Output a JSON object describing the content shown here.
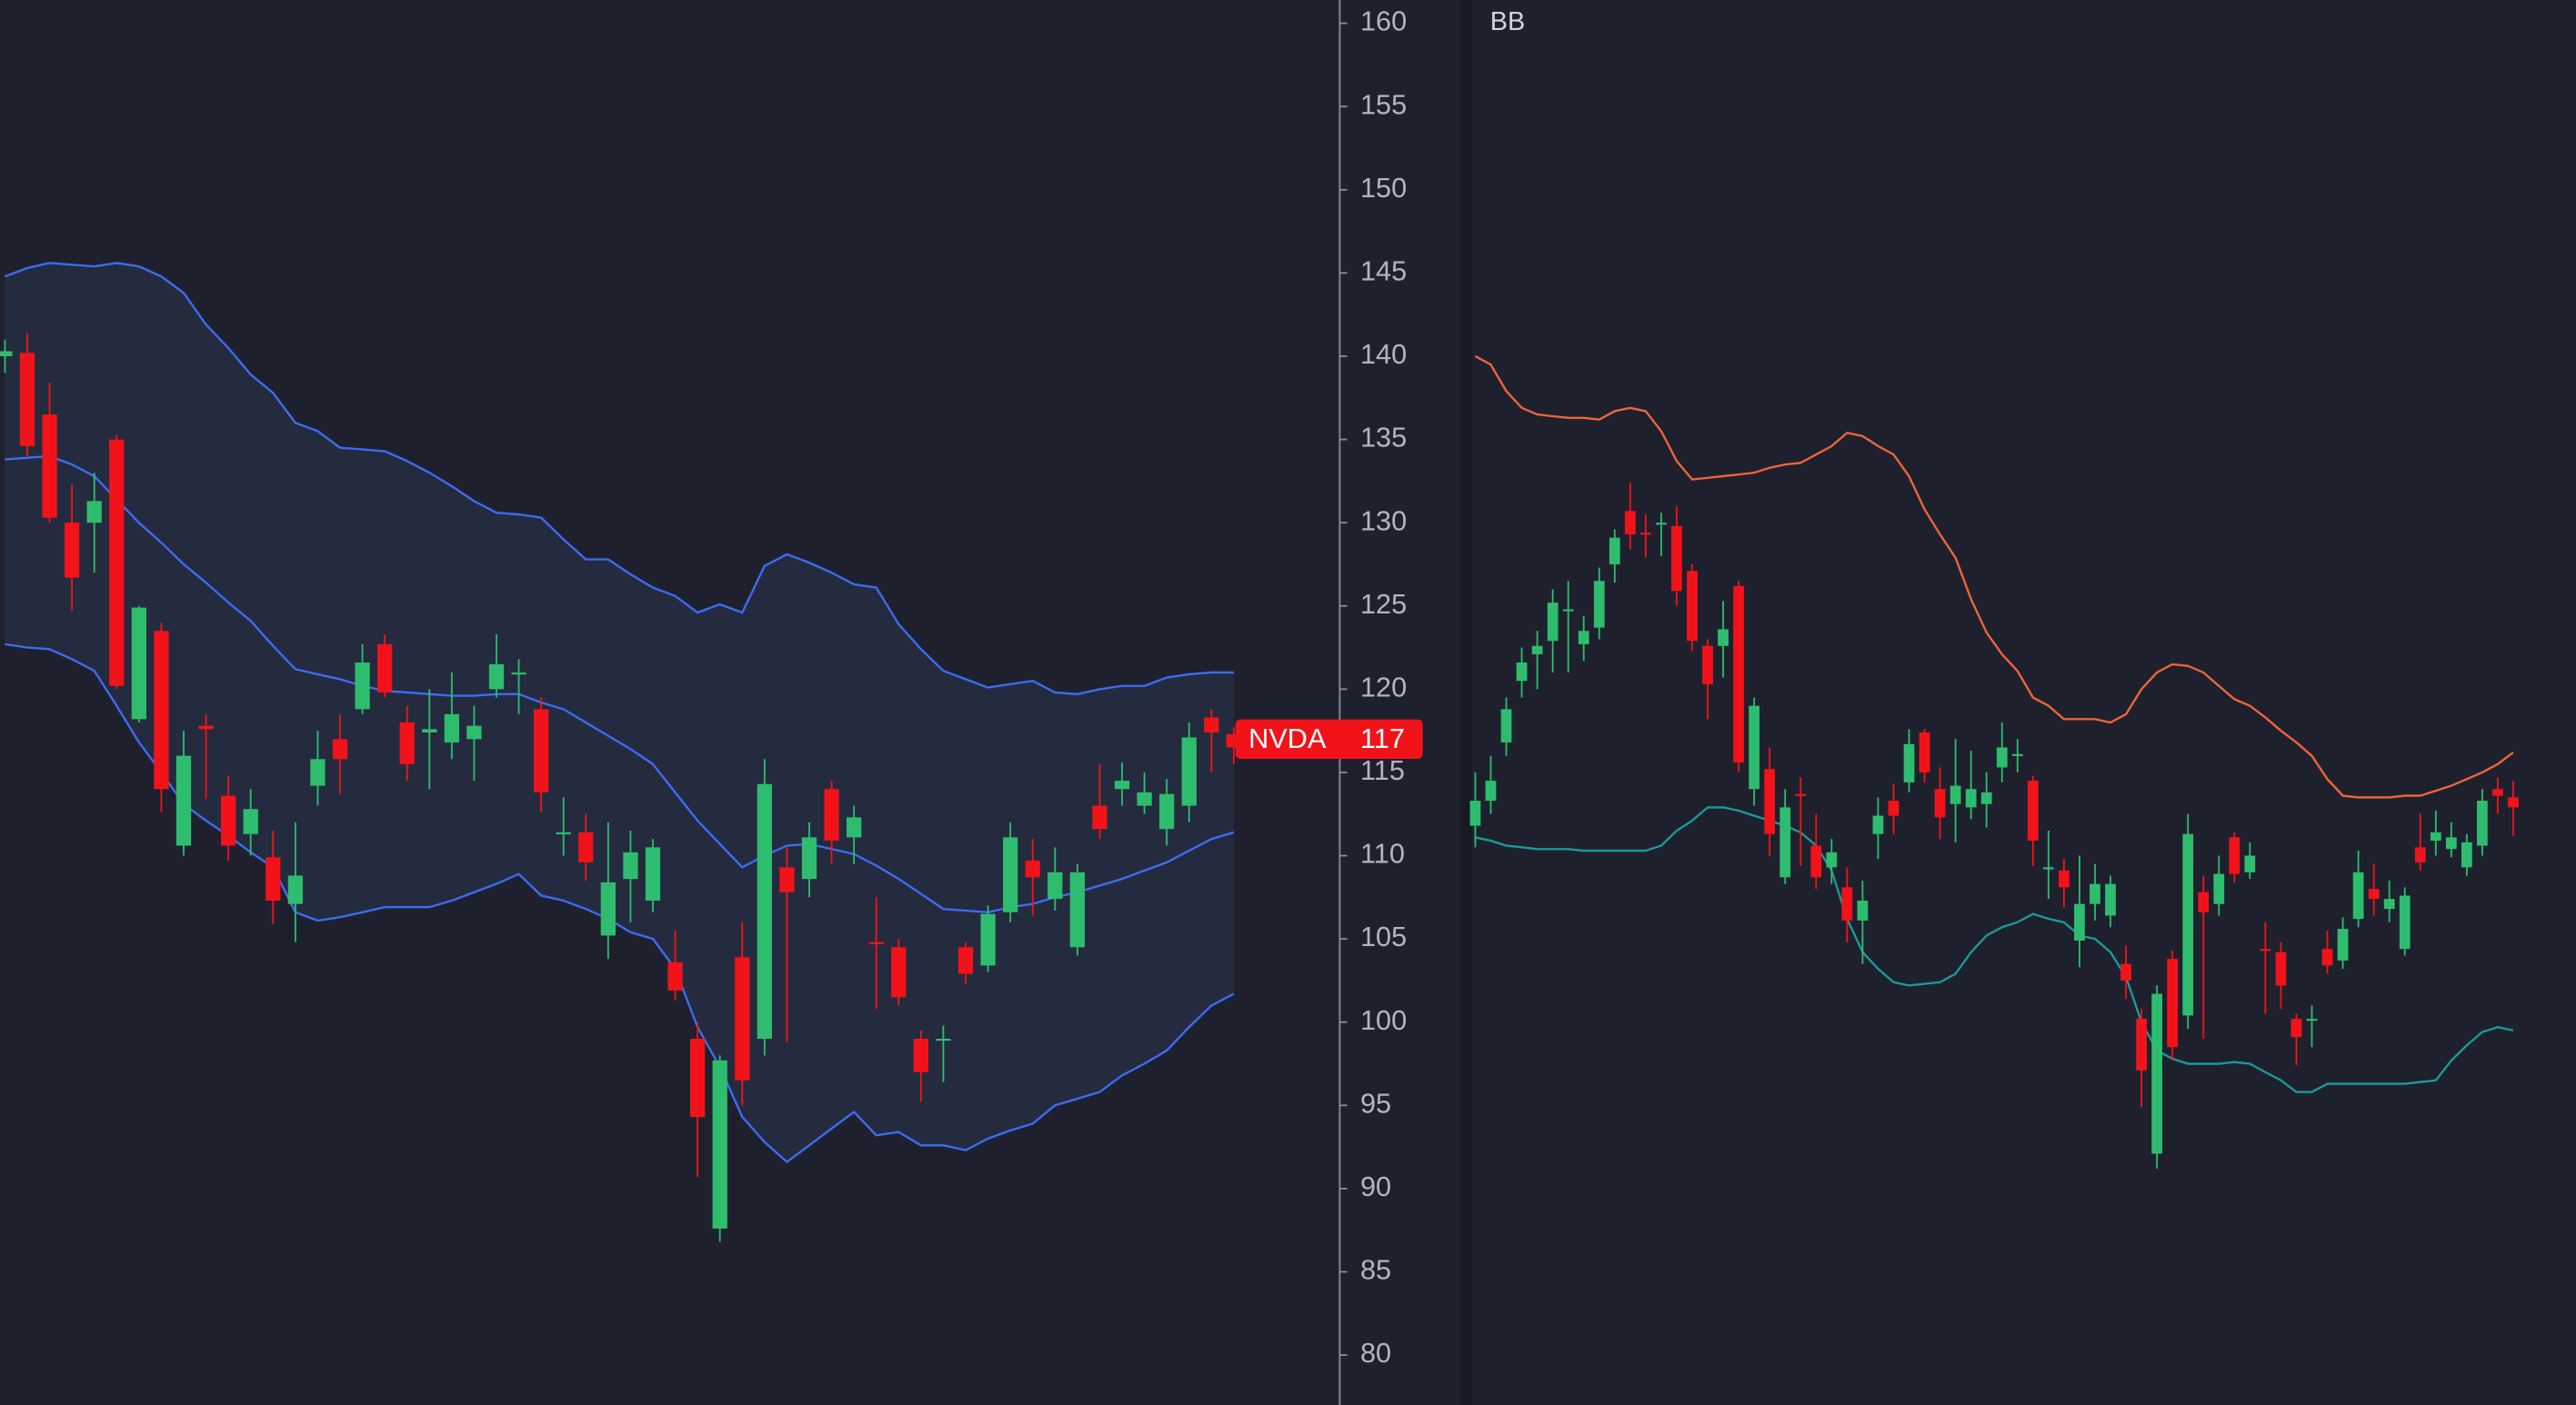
{
  "chart_data": [
    {
      "type": "candlestick",
      "up_color": "#2ebd6e",
      "down_color": "#f2131a",
      "ylim": [
        77,
        161.4
      ],
      "yticks": [
        80,
        85,
        90,
        95,
        100,
        105,
        110,
        115,
        120,
        125,
        130,
        135,
        140,
        145,
        150,
        155,
        160
      ],
      "open": [
        140.0,
        140.2,
        136.5,
        130.0,
        130.0,
        135.0,
        118.2,
        123.5,
        110.6,
        117.8,
        113.6,
        111.3,
        109.9,
        107.1,
        114.2,
        117.0,
        118.8,
        122.7,
        118.0,
        117.4,
        116.8,
        117.0,
        120.0,
        120.9,
        118.8,
        111.3,
        111.4,
        105.2,
        108.6,
        107.3,
        103.6,
        99.0,
        87.6,
        103.9,
        99.0,
        109.3,
        108.6,
        114.0,
        111.1,
        104.8,
        104.5,
        99.0,
        98.9,
        104.5,
        103.4,
        106.6,
        109.7,
        107.4,
        104.5,
        113.0,
        114.0,
        113.0,
        111.6,
        113.0,
        118.3,
        117.3
      ],
      "high": [
        141.0,
        141.4,
        138.4,
        132.3,
        133.0,
        135.3,
        125.0,
        124.0,
        117.5,
        118.5,
        114.8,
        114.0,
        111.5,
        112.0,
        117.5,
        118.5,
        122.7,
        123.3,
        119.0,
        120.0,
        121.0,
        119.0,
        123.3,
        121.8,
        119.5,
        113.5,
        112.5,
        112.0,
        111.5,
        111.0,
        105.5,
        100.0,
        98.0,
        106.0,
        115.8,
        110.5,
        112.0,
        114.5,
        113.0,
        107.5,
        105.0,
        99.5,
        99.8,
        104.8,
        107.0,
        112.0,
        111.0,
        110.5,
        109.5,
        115.5,
        115.6,
        115.0,
        114.6,
        118.0,
        118.8,
        117.7
      ],
      "low": [
        139.0,
        134.0,
        130.0,
        124.7,
        127.0,
        120.0,
        118.0,
        112.6,
        110.0,
        113.4,
        109.7,
        110.0,
        105.9,
        104.8,
        113.0,
        113.7,
        118.5,
        119.5,
        114.5,
        114.0,
        115.8,
        114.5,
        119.5,
        118.5,
        112.6,
        110.0,
        108.5,
        103.8,
        106.0,
        106.6,
        101.3,
        90.7,
        86.8,
        95.0,
        98.0,
        98.8,
        107.5,
        109.5,
        109.5,
        100.8,
        101.0,
        95.2,
        96.4,
        102.3,
        103.0,
        106.0,
        106.4,
        106.7,
        104.0,
        111.0,
        113.0,
        112.5,
        110.6,
        112.0,
        115.0,
        115.5
      ],
      "close": [
        140.3,
        134.6,
        130.3,
        126.7,
        131.3,
        120.2,
        124.9,
        114.0,
        116.0,
        117.6,
        110.6,
        112.8,
        107.3,
        108.8,
        115.8,
        115.8,
        121.6,
        119.8,
        115.5,
        117.6,
        118.5,
        117.8,
        121.5,
        121.0,
        113.8,
        111.4,
        109.6,
        108.4,
        110.2,
        110.5,
        101.9,
        94.3,
        97.7,
        96.5,
        114.3,
        107.8,
        111.1,
        110.9,
        112.3,
        104.7,
        101.5,
        97.0,
        99.0,
        102.9,
        106.5,
        111.1,
        108.7,
        109.0,
        109.0,
        111.6,
        114.5,
        113.8,
        113.7,
        117.1,
        117.4,
        116.5
      ],
      "bands": {
        "color": "#3d6cf5",
        "fill": "#242b3e",
        "upper": [
          144.8,
          145.3,
          145.6,
          145.5,
          145.4,
          145.6,
          145.4,
          144.8,
          143.8,
          141.9,
          140.5,
          138.9,
          137.8,
          136.0,
          135.5,
          134.5,
          134.4,
          134.3,
          133.7,
          133.0,
          132.2,
          131.3,
          130.6,
          130.5,
          130.3,
          129.0,
          127.8,
          127.8,
          126.9,
          126.1,
          125.6,
          124.6,
          125.1,
          124.6,
          127.4,
          128.1,
          127.6,
          127.0,
          126.3,
          126.1,
          123.9,
          122.4,
          121.1,
          120.6,
          120.1,
          120.3,
          120.5,
          119.8,
          119.7,
          120.0,
          120.2,
          120.2,
          120.7,
          120.9,
          121.0,
          121.0
        ],
        "middle": [
          133.8,
          133.9,
          134.0,
          133.5,
          132.8,
          131.4,
          130.0,
          128.8,
          127.5,
          126.4,
          125.2,
          124.1,
          122.6,
          121.2,
          120.9,
          120.6,
          120.2,
          119.9,
          119.8,
          119.7,
          119.6,
          119.6,
          119.7,
          119.7,
          119.2,
          118.8,
          118.0,
          117.2,
          116.4,
          115.5,
          113.8,
          112.1,
          110.7,
          109.3,
          110.0,
          110.6,
          110.7,
          110.4,
          110.1,
          109.4,
          108.6,
          107.7,
          106.8,
          106.7,
          106.6,
          106.9,
          107.1,
          107.5,
          107.8,
          108.2,
          108.6,
          109.1,
          109.6,
          110.3,
          111.0,
          111.4
        ],
        "lower": [
          122.7,
          122.5,
          122.4,
          121.8,
          121.1,
          119.0,
          116.8,
          115.0,
          113.1,
          112.1,
          111.2,
          110.2,
          109.3,
          106.6,
          106.1,
          106.3,
          106.6,
          106.9,
          106.9,
          106.9,
          107.3,
          107.8,
          108.3,
          108.9,
          107.6,
          107.3,
          106.8,
          106.2,
          105.4,
          105.0,
          103.2,
          99.7,
          97.3,
          94.3,
          92.8,
          91.6,
          92.6,
          93.6,
          94.6,
          93.2,
          93.4,
          92.6,
          92.6,
          92.3,
          93.0,
          93.5,
          93.9,
          95.0,
          95.4,
          95.8,
          96.8,
          97.5,
          98.3,
          99.7,
          101.0,
          101.7
        ]
      },
      "last_price": {
        "label": "NVDA",
        "value": 117,
        "color": "#f2131a"
      }
    },
    {
      "type": "candlestick",
      "title": "BB",
      "up_color": "#2ebd6e",
      "down_color": "#f2131a",
      "ylim": [
        77,
        161.4
      ],
      "open": [
        111.8,
        113.3,
        116.8,
        120.5,
        122.1,
        122.9,
        124.7,
        122.7,
        123.7,
        127.5,
        130.7,
        129.4,
        129.9,
        129.8,
        127.1,
        122.6,
        122.6,
        126.2,
        114.0,
        115.2,
        108.7,
        113.7,
        110.6,
        109.3,
        108.1,
        106.1,
        111.3,
        113.3,
        114.4,
        117.4,
        114.0,
        113.1,
        112.9,
        113.1,
        115.3,
        116.0,
        114.5,
        109.3,
        109.1,
        104.9,
        107.1,
        106.4,
        103.5,
        100.2,
        92.1,
        103.8,
        100.4,
        107.8,
        107.1,
        111.1,
        109.0,
        104.4,
        104.2,
        100.2,
        100.2,
        104.4,
        103.7,
        106.2,
        108.0,
        106.8,
        104.4,
        110.5,
        110.9,
        110.4,
        109.3,
        110.6,
        114.0,
        113.5
      ],
      "high": [
        115.0,
        116.0,
        119.5,
        122.5,
        123.5,
        126.0,
        126.5,
        124.4,
        127.3,
        129.6,
        132.4,
        130.5,
        130.6,
        131.0,
        127.5,
        123.0,
        125.3,
        126.5,
        119.5,
        116.5,
        114.0,
        114.7,
        112.5,
        111.0,
        109.3,
        108.5,
        113.5,
        114.3,
        117.6,
        117.6,
        115.3,
        117.0,
        116.3,
        115.0,
        118.0,
        117.0,
        114.8,
        111.5,
        109.8,
        110.0,
        109.5,
        108.8,
        104.6,
        100.8,
        102.2,
        104.3,
        112.5,
        108.8,
        110.0,
        111.4,
        110.8,
        106.0,
        104.8,
        100.5,
        101.0,
        105.5,
        106.3,
        110.3,
        109.5,
        108.5,
        108.1,
        112.5,
        112.7,
        112.0,
        111.3,
        114.0,
        114.7,
        114.5
      ],
      "low": [
        110.5,
        112.5,
        116.0,
        119.5,
        120.0,
        121.0,
        121.0,
        121.7,
        123.0,
        126.4,
        128.4,
        127.9,
        128.0,
        125.0,
        122.3,
        118.2,
        120.7,
        115.0,
        113.0,
        110.0,
        108.3,
        109.4,
        108.0,
        108.3,
        104.8,
        103.5,
        109.8,
        111.3,
        113.8,
        114.4,
        111.0,
        110.8,
        112.2,
        111.7,
        114.4,
        115.0,
        109.4,
        107.4,
        106.9,
        103.3,
        106.1,
        105.7,
        101.4,
        94.9,
        91.2,
        97.7,
        99.6,
        99.0,
        106.4,
        108.4,
        108.6,
        100.5,
        100.8,
        97.4,
        98.5,
        102.9,
        103.2,
        105.7,
        106.4,
        106.0,
        104.0,
        109.1,
        110.0,
        109.9,
        108.8,
        110.0,
        112.5,
        111.2
      ],
      "close": [
        113.3,
        114.5,
        118.8,
        121.6,
        122.6,
        125.2,
        124.8,
        123.5,
        126.5,
        129.1,
        129.3,
        129.3,
        130.0,
        125.9,
        122.9,
        120.3,
        123.6,
        115.6,
        119.0,
        111.3,
        112.9,
        113.6,
        108.7,
        110.2,
        106.1,
        107.3,
        112.4,
        112.4,
        116.7,
        115.0,
        112.3,
        114.2,
        114.0,
        113.8,
        116.5,
        116.1,
        110.9,
        109.3,
        108.1,
        107.1,
        108.3,
        108.3,
        102.5,
        97.1,
        101.7,
        98.5,
        111.3,
        106.6,
        108.9,
        108.9,
        110.0,
        104.3,
        102.2,
        99.1,
        100.2,
        103.4,
        105.6,
        109.0,
        107.4,
        107.4,
        107.6,
        109.6,
        111.4,
        111.1,
        110.8,
        113.3,
        113.6,
        112.9
      ],
      "bands": {
        "upper_color": "#f0653a",
        "lower_color": "#1b9a9a",
        "upper": [
          140.0,
          139.5,
          137.9,
          136.9,
          136.5,
          136.4,
          136.3,
          136.3,
          136.2,
          136.7,
          136.9,
          136.7,
          135.5,
          133.7,
          132.6,
          132.7,
          132.8,
          132.9,
          133.0,
          133.3,
          133.5,
          133.6,
          134.1,
          134.6,
          135.4,
          135.2,
          134.6,
          134.1,
          132.8,
          130.8,
          129.3,
          127.9,
          125.4,
          123.4,
          122.1,
          121.1,
          119.5,
          119.0,
          118.2,
          118.2,
          118.2,
          118.0,
          118.5,
          120.0,
          121.0,
          121.5,
          121.4,
          121.0,
          120.2,
          119.4,
          119.0,
          118.3,
          117.5,
          116.8,
          116.0,
          114.6,
          113.6,
          113.5,
          113.5,
          113.5,
          113.6,
          113.6,
          113.9,
          114.2,
          114.6,
          115.0,
          115.5,
          116.2
        ],
        "lower": [
          111.1,
          110.9,
          110.6,
          110.5,
          110.4,
          110.4,
          110.4,
          110.3,
          110.3,
          110.3,
          110.3,
          110.3,
          110.6,
          111.5,
          112.1,
          112.9,
          112.9,
          112.7,
          112.4,
          112.1,
          111.8,
          111.4,
          110.6,
          109.1,
          106.2,
          104.2,
          103.2,
          102.4,
          102.2,
          102.3,
          102.4,
          102.9,
          104.2,
          105.2,
          105.7,
          106.0,
          106.5,
          106.2,
          106.0,
          105.2,
          105.0,
          104.2,
          102.7,
          100.0,
          98.3,
          97.8,
          97.5,
          97.5,
          97.5,
          97.6,
          97.5,
          97.0,
          96.5,
          95.8,
          95.8,
          96.3,
          96.3,
          96.3,
          96.3,
          96.3,
          96.3,
          96.4,
          96.5,
          97.7,
          98.6,
          99.4,
          99.7,
          99.5
        ]
      }
    }
  ]
}
